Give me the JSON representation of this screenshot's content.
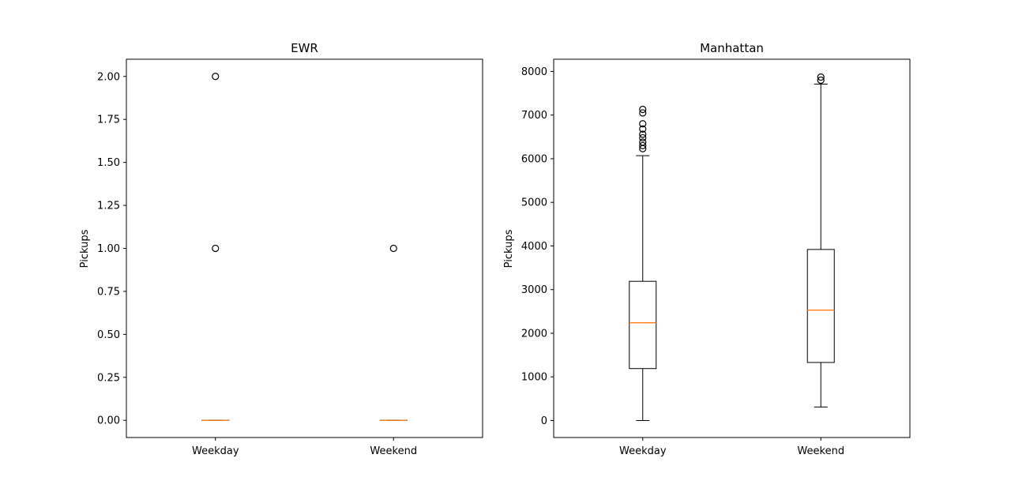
{
  "chart_data": [
    {
      "type": "box",
      "title": "EWR",
      "ylabel": "Pickups",
      "xlabel": "",
      "categories": [
        "Weekday",
        "Weekend"
      ],
      "ylim": [
        -0.1,
        2.1
      ],
      "yticks": [
        0.0,
        0.25,
        0.5,
        0.75,
        1.0,
        1.25,
        1.5,
        1.75,
        2.0
      ],
      "ytick_labels": [
        "0.00",
        "0.25",
        "0.50",
        "0.75",
        "1.00",
        "1.25",
        "1.50",
        "1.75",
        "2.00"
      ],
      "boxes": [
        {
          "category": "Weekday",
          "whisker_low": 0,
          "q1": 0,
          "median": 0,
          "q3": 0,
          "whisker_high": 0,
          "outliers": [
            1,
            2
          ]
        },
        {
          "category": "Weekend",
          "whisker_low": 0,
          "q1": 0,
          "median": 0,
          "q3": 0,
          "whisker_high": 0,
          "outliers": [
            1
          ]
        }
      ],
      "grid": false,
      "median_color": "#ff7f0e"
    },
    {
      "type": "box",
      "title": "Manhattan",
      "ylabel": "Pickups",
      "xlabel": "",
      "categories": [
        "Weekday",
        "Weekend"
      ],
      "ylim": [
        -390,
        8280
      ],
      "yticks": [
        0,
        1000,
        2000,
        3000,
        4000,
        5000,
        6000,
        7000,
        8000
      ],
      "ytick_labels": [
        "0",
        "1000",
        "2000",
        "3000",
        "4000",
        "5000",
        "6000",
        "7000",
        "8000"
      ],
      "boxes": [
        {
          "category": "Weekday",
          "whisker_low": 0,
          "q1": 1190,
          "median": 2240,
          "q3": 3190,
          "whisker_high": 6070,
          "outliers": [
            6230,
            6300,
            6380,
            6480,
            6560,
            6680,
            6800,
            7050,
            7130
          ]
        },
        {
          "category": "Weekend",
          "whisker_low": 310,
          "q1": 1330,
          "median": 2530,
          "q3": 3920,
          "whisker_high": 7710,
          "outliers": [
            7800,
            7870
          ]
        }
      ],
      "grid": false,
      "median_color": "#ff7f0e"
    }
  ]
}
